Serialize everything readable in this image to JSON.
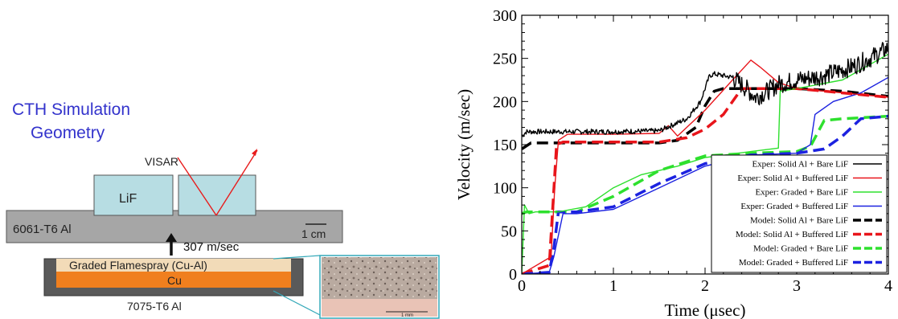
{
  "geometry": {
    "title_line1": "CTH Simulation",
    "title_line2": "Geometry",
    "visar_label": "VISAR",
    "lif_label": "LiF",
    "plate_label": "6061-T6 Al",
    "scale_label": "1 cm",
    "velocity_label": "307 m/sec",
    "graded_label": "Graded Flamespray (Cu-Al)",
    "cu_label": "Cu",
    "base_label": "7075-T6 Al",
    "micro_scale_label": "1 mm",
    "colors": {
      "title": "#3333cc",
      "lif": "#b7dde3",
      "plate": "#a6a6a6",
      "cu": "#f07f1e",
      "graded": "#f2dbb8",
      "housing": "#5a5a5a",
      "beam": "#e81c1c",
      "inset_border": "#33a8b8"
    }
  },
  "chart_data": {
    "type": "line",
    "xlabel": "Time (μsec)",
    "ylabel": "Velocity (m/sec)",
    "xlim": [
      0,
      4
    ],
    "ylim": [
      0,
      300
    ],
    "xticks": [
      "0",
      "1",
      "2",
      "3",
      "4"
    ],
    "yticks": [
      "0",
      "50",
      "100",
      "150",
      "200",
      "250",
      "300"
    ],
    "legend_position": "bottom-right",
    "series": [
      {
        "name": "Exper: Solid Al + Bare LiF",
        "color": "#000000",
        "dash": "solid",
        "noise": 5,
        "x": [
          0,
          0.05,
          0.5,
          1.0,
          1.5,
          1.8,
          1.95,
          2.05,
          2.1,
          2.3,
          2.45,
          2.55,
          2.65,
          2.8,
          3.0,
          3.3,
          3.6,
          3.8,
          4.0
        ],
        "y": [
          160,
          165,
          165,
          165,
          166,
          180,
          200,
          230,
          232,
          228,
          215,
          205,
          210,
          220,
          225,
          230,
          240,
          250,
          262
        ]
      },
      {
        "name": "Exper: Solid Al + Buffered LiF",
        "color": "#e8151b",
        "dash": "solid",
        "noise": 0,
        "x": [
          0,
          0.32,
          0.36,
          0.4,
          0.5,
          1.0,
          1.5,
          1.6,
          1.7,
          2.0,
          2.3,
          2.5,
          2.6,
          2.8,
          3.0,
          3.2,
          3.5,
          4.0
        ],
        "y": [
          0,
          20,
          100,
          155,
          162,
          162,
          163,
          172,
          160,
          190,
          225,
          248,
          240,
          222,
          215,
          213,
          210,
          205
        ]
      },
      {
        "name": "Exper: Graded + Bare LiF",
        "color": "#2ee02e",
        "dash": "solid",
        "noise": 0,
        "x": [
          0,
          0.03,
          0.08,
          0.15,
          0.4,
          0.7,
          1.0,
          1.3,
          1.7,
          2.0,
          2.5,
          2.8,
          2.82,
          3.0,
          3.5,
          4.0
        ],
        "y": [
          0,
          80,
          70,
          72,
          72,
          78,
          100,
          115,
          125,
          135,
          142,
          146,
          212,
          215,
          225,
          255
        ]
      },
      {
        "name": "Exper: Graded + Buffered LiF",
        "color": "#1c22e0",
        "dash": "solid",
        "noise": 0,
        "x": [
          0,
          0.3,
          0.35,
          0.45,
          0.6,
          1.0,
          1.5,
          2.0,
          2.5,
          3.0,
          3.15,
          3.2,
          3.4,
          3.7,
          4.0
        ],
        "y": [
          0,
          2,
          20,
          70,
          70,
          75,
          100,
          125,
          138,
          140,
          150,
          185,
          200,
          210,
          228
        ]
      },
      {
        "name": "Model: Solid Al + Bare LiF",
        "color": "#000000",
        "dash": "dashed",
        "noise": 0,
        "x": [
          0,
          0.1,
          1.5,
          1.7,
          1.9,
          2.0,
          2.1,
          2.2,
          3.0,
          3.5,
          4.0
        ],
        "y": [
          145,
          152,
          152,
          155,
          170,
          195,
          212,
          215,
          215,
          212,
          206
        ]
      },
      {
        "name": "Model: Solid Al + Buffered LiF",
        "color": "#e8151b",
        "dash": "dashed",
        "noise": 0,
        "x": [
          0,
          0.3,
          0.38,
          0.45,
          1.5,
          1.8,
          2.0,
          2.2,
          2.4,
          3.0,
          3.5,
          4.0
        ],
        "y": [
          0,
          10,
          150,
          153,
          153,
          158,
          168,
          185,
          215,
          215,
          210,
          205
        ]
      },
      {
        "name": "Model: Graded + Bare LiF",
        "color": "#2ee02e",
        "dash": "dashed",
        "noise": 0,
        "x": [
          0,
          0.05,
          0.3,
          0.6,
          1.0,
          1.5,
          2.0,
          2.5,
          3.0,
          3.15,
          3.3,
          3.5,
          4.0
        ],
        "y": [
          70,
          72,
          72,
          72,
          90,
          120,
          137,
          140,
          142,
          148,
          178,
          180,
          183
        ]
      },
      {
        "name": "Model: Graded + Buffered LiF",
        "color": "#1c22e0",
        "dash": "dashed",
        "noise": 0,
        "x": [
          0,
          0.3,
          0.35,
          0.4,
          0.6,
          1.0,
          1.5,
          2.0,
          2.5,
          3.0,
          3.3,
          3.5,
          3.7,
          4.0
        ],
        "y": [
          0,
          2,
          30,
          72,
          72,
          78,
          105,
          128,
          138,
          140,
          145,
          160,
          180,
          183
        ]
      }
    ]
  }
}
